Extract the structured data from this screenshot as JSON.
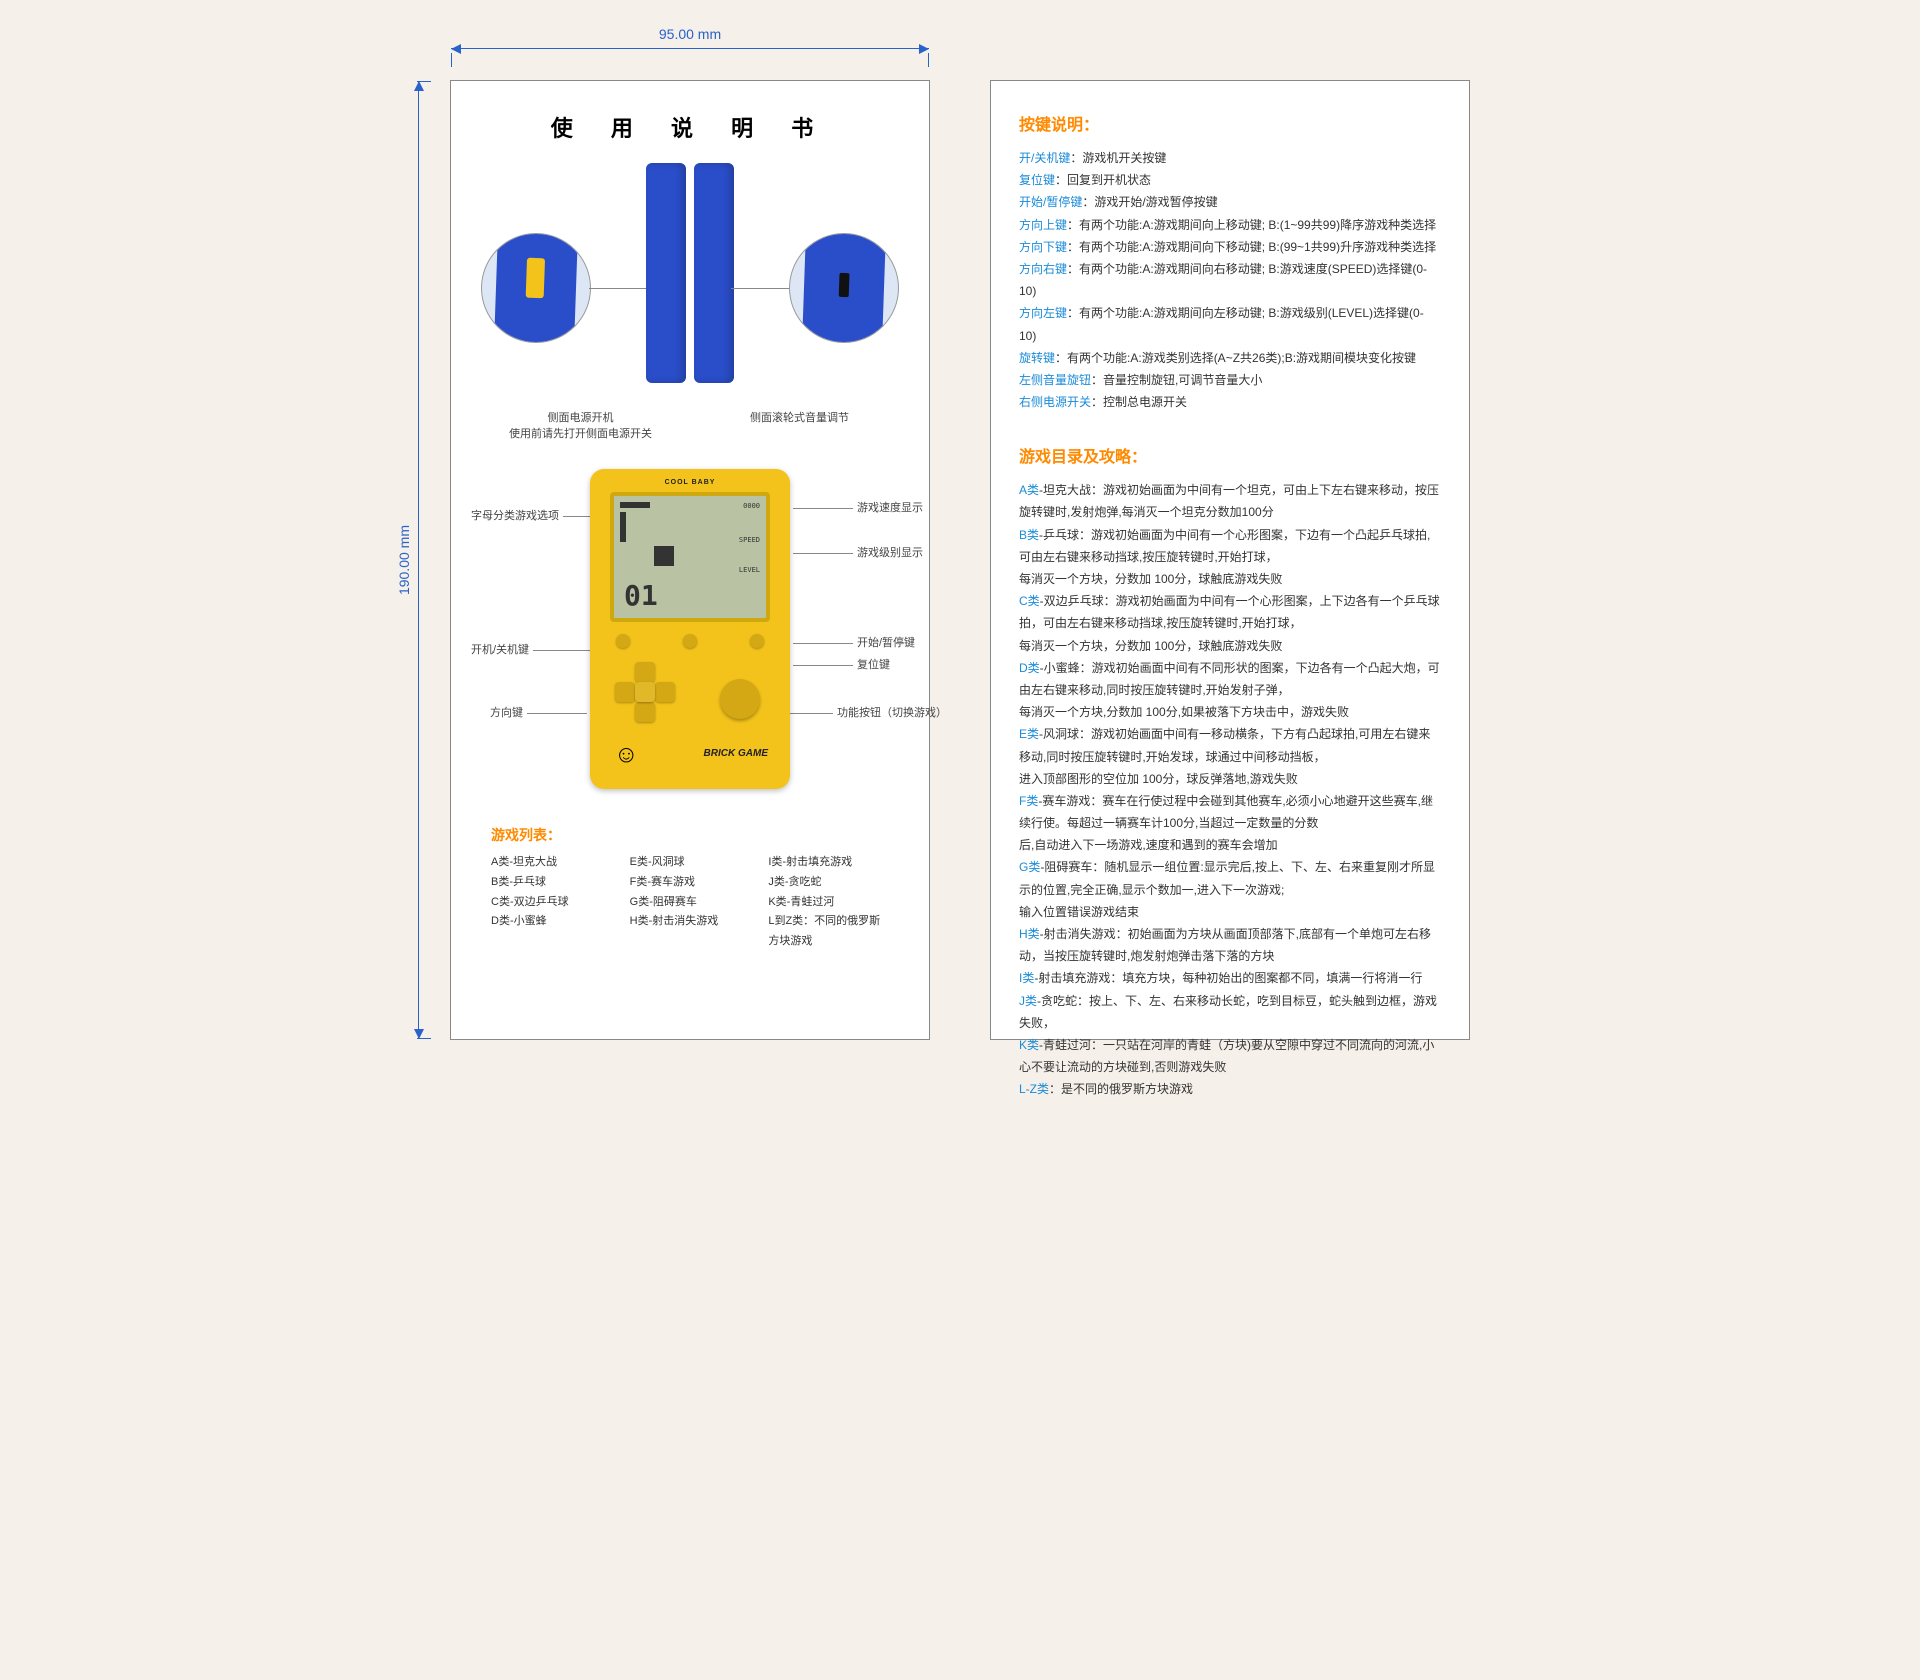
{
  "dimensions": {
    "width_label": "95.00 mm",
    "height_label": "190.00 mm"
  },
  "colors": {
    "dim_blue": "#2962c9",
    "accent_orange": "#ff8a00",
    "key_blue": "#1a8bd8",
    "device_yellow": "#f3c31b",
    "stick_blue": "#2a4ec9",
    "screen_bg": "#b9c2a3"
  },
  "left": {
    "title": "使 用 说 明 书",
    "caption_left_line1": "侧面电源开机",
    "caption_left_line2": "使用前请先打开侧面电源开关",
    "caption_right": "侧面滚轮式音量调节",
    "device": {
      "brand": "COOL BABY",
      "brick_label": "BRICK GAME",
      "kid_glyph": "☺",
      "screen": {
        "speed_label": "游戏速度显示",
        "level_label": "游戏级别显示",
        "big_digits": "01"
      },
      "callouts": {
        "letter_cat": "字母分类游戏选项",
        "speed": "游戏速度显示",
        "level": "游戏级别显示",
        "onoff": "开机/关机键",
        "start_pause": "开始/暂停键",
        "reset": "复位键",
        "dpad": "方向键",
        "func": "功能按钮（切换游戏）"
      }
    },
    "game_list_title": "游戏列表：",
    "game_list_cols": [
      [
        "A类-坦克大战",
        "B类-乒乓球",
        "C类-双边乒乓球",
        "D类-小蜜蜂"
      ],
      [
        "E类-风洞球",
        "F类-赛车游戏",
        "G类-阻碍赛车",
        "H类-射击消失游戏"
      ],
      [
        "I类-射击填充游戏",
        "J类-贪吃蛇",
        "K类-青蛙过河",
        "L到Z类：不同的俄罗斯方块游戏"
      ]
    ]
  },
  "right": {
    "keys_title": "按键说明：",
    "keys": [
      {
        "k": "开/关机键",
        "v": "：游戏机开关按键"
      },
      {
        "k": "复位键",
        "v": "：回复到开机状态"
      },
      {
        "k": "开始/暂停键",
        "v": "：游戏开始/游戏暂停按键"
      },
      {
        "k": "方向上键",
        "v": "：有两个功能:A:游戏期间向上移动键; B:(1~99共99)降序游戏种类选择"
      },
      {
        "k": "方向下键",
        "v": "：有两个功能:A:游戏期间向下移动键; B:(99~1共99)升序游戏种类选择"
      },
      {
        "k": "方向右键",
        "v": "：有两个功能:A:游戏期间向右移动键; B:游戏速度(SPEED)选择键(0-10)"
      },
      {
        "k": "方向左键",
        "v": "：有两个功能:A:游戏期间向左移动键; B:游戏级别(LEVEL)选择键(0-10)"
      },
      {
        "k": "旋转键",
        "v": "：有两个功能:A:游戏类别选择(A~Z共26类);B:游戏期间模块变化按键"
      },
      {
        "k": "左侧音量旋钮",
        "v": "：音量控制旋钮,可调节音量大小"
      },
      {
        "k": "右侧电源开关",
        "v": "：控制总电源开关"
      }
    ],
    "games_title": "游戏目录及攻略：",
    "games": [
      {
        "cat": "A类",
        "txt": "-坦克大战：游戏初始画面为中间有一个坦克，可由上下左右键来移动，按压旋转键时,发射炮弹,每消灭一个坦克分数加100分"
      },
      {
        "cat": "B类",
        "txt": "-乒乓球：游戏初始画面为中间有一个心形图案，下边有一个凸起乒乓球拍,可由左右键来移动挡球,按压旋转键时,开始打球，"
      },
      {
        "cat": "",
        "txt": "每消灭一个方块，分数加 100分，球触底游戏失败"
      },
      {
        "cat": "C类",
        "txt": "-双边乒乓球：游戏初始画面为中间有一个心形图案，上下边各有一个乒乓球拍，可由左右键来移动挡球,按压旋转键时,开始打球，"
      },
      {
        "cat": "",
        "txt": "每消灭一个方块，分数加 100分，球触底游戏失败"
      },
      {
        "cat": "D类",
        "txt": "-小蜜蜂：游戏初始画面中间有不同形状的图案，下边各有一个凸起大炮，可由左右键来移动,同时按压旋转键时,开始发射子弹，"
      },
      {
        "cat": "",
        "txt": "每消灭一个方块,分数加 100分,如果被落下方块击中，游戏失败"
      },
      {
        "cat": "E类",
        "txt": "-风洞球：游戏初始画面中间有一移动横条，下方有凸起球拍,可用左右键来移动,同时按压旋转键时,开始发球，球通过中间移动挡板，"
      },
      {
        "cat": "",
        "txt": "进入顶部图形的空位加 100分，球反弹落地,游戏失败"
      },
      {
        "cat": "F类",
        "txt": "-赛车游戏：赛车在行使过程中会碰到其他赛车,必须小心地避开这些赛车,继续行使。每超过一辆赛车计100分,当超过一定数量的分数"
      },
      {
        "cat": "",
        "txt": "后,自动进入下一场游戏,速度和遇到的赛车会增加"
      },
      {
        "cat": "G类",
        "txt": "-阻碍赛车：随机显示一组位置:显示完后,按上、下、左、右来重复刚才所显示的位置,完全正确,显示个数加一,进入下一次游戏;"
      },
      {
        "cat": "",
        "txt": "输入位置错误游戏结束"
      },
      {
        "cat": "H类",
        "txt": "-射击消失游戏：初始画面为方块从画面顶部落下,底部有一个单炮可左右移动，当按压旋转键时,炮发射炮弹击落下落的方块"
      },
      {
        "cat": "I类",
        "txt": "-射击填充游戏：填充方块，每种初始出的图案都不同，填满一行将消一行"
      },
      {
        "cat": "J类",
        "txt": "-贪吃蛇：按上、下、左、右来移动长蛇，吃到目标豆，蛇头触到边框，游戏失败，"
      },
      {
        "cat": "K类",
        "txt": "-青蛙过河：一只站在河岸的青蛙（方块)要从空隙中穿过不同流向的河流,小心不要让流动的方块碰到,否则游戏失败"
      },
      {
        "cat": "L-Z类",
        "txt": "：是不同的俄罗斯方块游戏"
      }
    ]
  }
}
